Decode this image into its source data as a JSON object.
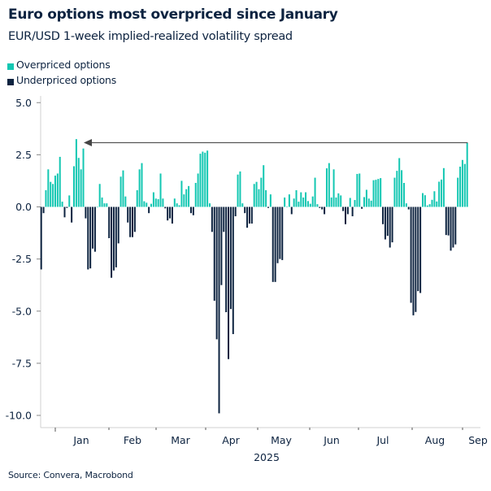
{
  "title": "Euro options most overpriced since January",
  "subtitle": "EUR/USD 1-week implied-realized volatility spread",
  "source": "Source: Convera, Macrobond",
  "colors": {
    "overpriced": "#13c7b2",
    "underpriced": "#0d2340",
    "arrow": "#555555"
  },
  "legend": [
    {
      "label": "Overpriced options",
      "color": "#13c7b2"
    },
    {
      "label": "Underpriced options",
      "color": "#0d2340"
    }
  ],
  "chart_data": {
    "type": "bar",
    "title": "Euro options most overpriced since January",
    "subtitle": "EUR/USD 1-week implied-realized volatility spread",
    "ylim": [
      -10.5,
      5.5
    ],
    "yticks": [
      "5.0",
      "2.5",
      "0.0",
      "-2.5",
      "-5.0",
      "-7.5",
      "-10.0"
    ],
    "ytick_values": [
      5,
      2.5,
      0,
      -2.5,
      -5,
      -7.5,
      -10
    ],
    "xticks": [
      "Jan",
      "Feb",
      "Mar",
      "Apr",
      "May",
      "Jun",
      "Jul",
      "Aug",
      "Sep"
    ],
    "xlabel": "2025",
    "grid": false,
    "legend_position": "top-left",
    "annotation": "arrow from latest value back to January high",
    "values": [
      -3.0,
      -0.3,
      0.8,
      1.8,
      1.2,
      1.1,
      1.5,
      1.6,
      2.4,
      0.25,
      -0.5,
      -0.05,
      0.55,
      -0.75,
      1.95,
      3.25,
      2.35,
      1.8,
      2.8,
      -0.55,
      -3.0,
      -2.95,
      -2.0,
      -2.15,
      0,
      1.1,
      0.45,
      0.17,
      0.17,
      -1.5,
      -3.4,
      -3.05,
      -2.9,
      -1.75,
      1.45,
      1.75,
      0.5,
      -0.75,
      -1.45,
      -1.45,
      -1.2,
      0.8,
      1.8,
      2.1,
      0.27,
      0.2,
      -0.3,
      0.15,
      0.7,
      0.4,
      0.37,
      1.6,
      0.4,
      -0.07,
      -0.65,
      -0.55,
      -0.8,
      0.4,
      0.17,
      0.08,
      1.25,
      0.6,
      0.85,
      1.0,
      -0.3,
      -0.4,
      1.15,
      1.6,
      2.55,
      2.65,
      2.6,
      2.7,
      0.17,
      -1.2,
      -4.5,
      -6.35,
      -9.9,
      -3.75,
      -1.2,
      -5.05,
      -7.3,
      -4.9,
      -6.1,
      -0.45,
      1.55,
      1.7,
      0.17,
      -0.3,
      -1.0,
      -0.8,
      -0.8,
      1.1,
      1.2,
      0.85,
      1.4,
      2.0,
      0.8,
      -0.05,
      0.6,
      -3.6,
      -3.6,
      -2.7,
      -2.5,
      -2.55,
      0.45,
      0.02,
      0.6,
      -0.35,
      0.4,
      0.8,
      0.25,
      0.7,
      0.45,
      0.7,
      0.28,
      0.15,
      0.5,
      1.4,
      0.13,
      -0.05,
      -0.12,
      -0.35,
      1.85,
      2.1,
      0.45,
      1.8,
      0.45,
      0.65,
      0.55,
      -0.2,
      -0.83,
      -0.35,
      0.43,
      -0.45,
      0.33,
      1.58,
      1.6,
      -0.09,
      0.47,
      0.82,
      0.4,
      0.3,
      1.28,
      1.3,
      1.34,
      1.38,
      -0.83,
      -1.56,
      -1.39,
      -1.95,
      -1.7,
      1.4,
      1.73,
      2.34,
      1.76,
      1.15,
      0.17,
      -0.12,
      -4.6,
      -5.2,
      -5.04,
      -4.04,
      -4.13,
      0.66,
      0.56,
      0.07,
      0.13,
      0.34,
      0.75,
      0.26,
      1.21,
      1.31,
      1.86,
      -1.35,
      -1.37,
      -2.1,
      -1.95,
      -1.8,
      1.4,
      1.93,
      2.25,
      2.06,
      3.07
    ]
  }
}
